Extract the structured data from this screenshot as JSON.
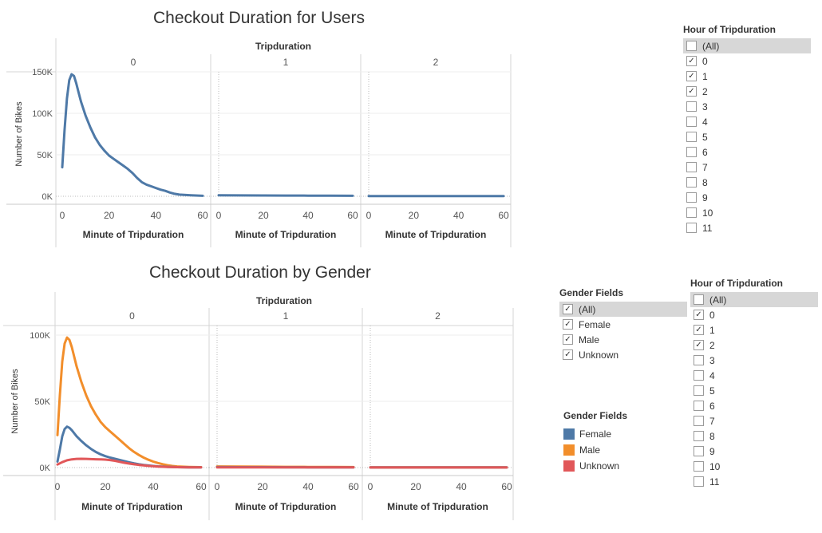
{
  "chart1_title": "Checkout Duration for Users",
  "chart2_title": "Checkout Duration by Gender",
  "filter_hour_1": {
    "title": "Hour of Tripduration",
    "items": [
      {
        "label": "(All)",
        "checked": false
      },
      {
        "label": "0",
        "checked": true
      },
      {
        "label": "1",
        "checked": true
      },
      {
        "label": "2",
        "checked": true
      },
      {
        "label": "3",
        "checked": false
      },
      {
        "label": "4",
        "checked": false
      },
      {
        "label": "5",
        "checked": false
      },
      {
        "label": "6",
        "checked": false
      },
      {
        "label": "7",
        "checked": false
      },
      {
        "label": "8",
        "checked": false
      },
      {
        "label": "9",
        "checked": false
      },
      {
        "label": "10",
        "checked": false
      },
      {
        "label": "11",
        "checked": false
      }
    ]
  },
  "filter_gender": {
    "title": "Gender Fields",
    "items": [
      {
        "label": "(All)",
        "checked": true
      },
      {
        "label": "Female",
        "checked": true
      },
      {
        "label": "Male",
        "checked": true
      },
      {
        "label": "Unknown",
        "checked": true
      }
    ]
  },
  "legend_gender": {
    "title": "Gender Fields",
    "items": [
      {
        "label": "Female",
        "color": "#4e79a7"
      },
      {
        "label": "Male",
        "color": "#f28e2b"
      },
      {
        "label": "Unknown",
        "color": "#e15759"
      }
    ]
  },
  "filter_hour_2": {
    "title": "Hour of Tripduration",
    "items": [
      {
        "label": "(All)",
        "checked": false
      },
      {
        "label": "0",
        "checked": true
      },
      {
        "label": "1",
        "checked": true
      },
      {
        "label": "2",
        "checked": true
      },
      {
        "label": "3",
        "checked": false
      },
      {
        "label": "4",
        "checked": false
      },
      {
        "label": "5",
        "checked": false
      },
      {
        "label": "6",
        "checked": false
      },
      {
        "label": "7",
        "checked": false
      },
      {
        "label": "8",
        "checked": false
      },
      {
        "label": "9",
        "checked": false
      },
      {
        "label": "10",
        "checked": false
      },
      {
        "label": "11",
        "checked": false
      }
    ]
  },
  "chart_data": [
    {
      "type": "line",
      "title": "Checkout Duration for Users",
      "column_header": "Tripduration",
      "panels": [
        "0",
        "1",
        "2"
      ],
      "xlabel": "Minute of Tripduration",
      "ylabel": "Number of Bikes",
      "xlim": [
        0,
        60
      ],
      "ylim": [
        0,
        150000
      ],
      "xticks": [
        "0",
        "20",
        "40",
        "60"
      ],
      "yticks": [
        "0K",
        "50K",
        "100K",
        "150K"
      ],
      "series": [
        {
          "color": "#4e79a7",
          "panels": [
            {
              "x": [
                0,
                1,
                2,
                3,
                4,
                5,
                6,
                7,
                8,
                10,
                12,
                14,
                16,
                18,
                20,
                22,
                24,
                26,
                28,
                30,
                32,
                34,
                36,
                38,
                40,
                42,
                44,
                46,
                48,
                50,
                55,
                60
              ],
              "y": [
                35000,
                80000,
                118000,
                140000,
                147000,
                145000,
                136000,
                125000,
                114000,
                97000,
                83000,
                71000,
                62000,
                55000,
                49000,
                45000,
                41000,
                37000,
                33000,
                28000,
                22000,
                17000,
                14000,
                12000,
                10000,
                8000,
                6500,
                4500,
                3000,
                2000,
                1200,
                600
              ]
            },
            {
              "x": [
                0,
                10,
                20,
                30,
                40,
                50,
                60
              ],
              "y": [
                1200,
                1100,
                1000,
                900,
                800,
                700,
                600
              ]
            },
            {
              "x": [
                0,
                10,
                20,
                30,
                40,
                50,
                60
              ],
              "y": [
                300,
                300,
                300,
                300,
                300,
                300,
                300
              ]
            }
          ]
        }
      ]
    },
    {
      "type": "line",
      "title": "Checkout Duration by Gender",
      "column_header": "Tripduration",
      "panels": [
        "0",
        "1",
        "2"
      ],
      "xlabel": "Minute of Tripduration",
      "ylabel": "Number of Bikes",
      "xlim": [
        0,
        60
      ],
      "ylim": [
        0,
        110000
      ],
      "xticks": [
        "0",
        "20",
        "40",
        "60"
      ],
      "yticks": [
        "0K",
        "50K",
        "100K"
      ],
      "series": [
        {
          "name": "Male",
          "color": "#f28e2b",
          "panels": [
            {
              "x": [
                0,
                1,
                2,
                3,
                4,
                5,
                6,
                7,
                8,
                10,
                12,
                14,
                16,
                18,
                20,
                22,
                24,
                26,
                28,
                30,
                32,
                34,
                36,
                38,
                40,
                42,
                44,
                46,
                48,
                50,
                55,
                60
              ],
              "y": [
                27000,
                60000,
                88000,
                103000,
                108000,
                106000,
                100000,
                92000,
                84000,
                71000,
                60000,
                51000,
                44000,
                38000,
                33500,
                30000,
                26500,
                23000,
                19500,
                16000,
                13000,
                10500,
                8300,
                6500,
                5000,
                3800,
                2800,
                1900,
                1300,
                900,
                500,
                300
              ]
            },
            {
              "x": [
                0,
                10,
                20,
                30,
                40,
                50,
                60
              ],
              "y": [
                900,
                800,
                700,
                600,
                500,
                450,
                400
              ]
            },
            {
              "x": [
                0,
                10,
                20,
                30,
                40,
                50,
                60
              ],
              "y": [
                200,
                200,
                200,
                200,
                200,
                200,
                200
              ]
            }
          ]
        },
        {
          "name": "Female",
          "color": "#4e79a7",
          "panels": [
            {
              "x": [
                0,
                1,
                2,
                3,
                4,
                5,
                6,
                7,
                8,
                10,
                12,
                14,
                16,
                18,
                20,
                22,
                24,
                26,
                28,
                30,
                32,
                34,
                36,
                38,
                40,
                42,
                44,
                46,
                48,
                50,
                55,
                60
              ],
              "y": [
                5000,
                15000,
                26000,
                32000,
                34000,
                33000,
                31000,
                28500,
                26000,
                22000,
                18500,
                15500,
                13000,
                11000,
                9500,
                8300,
                7300,
                6300,
                5300,
                4400,
                3500,
                2800,
                2200,
                1700,
                1300,
                1000,
                800,
                600,
                450,
                350,
                200,
                100
              ]
            },
            {
              "x": [
                0,
                10,
                20,
                30,
                40,
                50,
                60
              ],
              "y": [
                400,
                350,
                300,
                250,
                200,
                180,
                150
              ]
            },
            {
              "x": [
                0,
                10,
                20,
                30,
                40,
                50,
                60
              ],
              "y": [
                100,
                100,
                100,
                100,
                100,
                100,
                100
              ]
            }
          ]
        },
        {
          "name": "Unknown",
          "color": "#e15759",
          "panels": [
            {
              "x": [
                0,
                2,
                4,
                6,
                8,
                10,
                12,
                14,
                16,
                18,
                20,
                22,
                24,
                26,
                28,
                30,
                32,
                34,
                36,
                38,
                40,
                42,
                44,
                46,
                48,
                50,
                55,
                60
              ],
              "y": [
                2500,
                4500,
                6000,
                6800,
                7200,
                7300,
                7200,
                7000,
                6900,
                6800,
                6600,
                6200,
                5600,
                4800,
                4000,
                3300,
                2700,
                2200,
                1800,
                1400,
                1100,
                850,
                650,
                500,
                380,
                300,
                180,
                100
              ]
            },
            {
              "x": [
                0,
                10,
                20,
                30,
                40,
                50,
                60
              ],
              "y": [
                100,
                100,
                100,
                100,
                100,
                100,
                100
              ]
            },
            {
              "x": [
                0,
                10,
                20,
                30,
                40,
                50,
                60
              ],
              "y": [
                50,
                50,
                50,
                50,
                50,
                50,
                50
              ]
            }
          ]
        }
      ]
    }
  ]
}
